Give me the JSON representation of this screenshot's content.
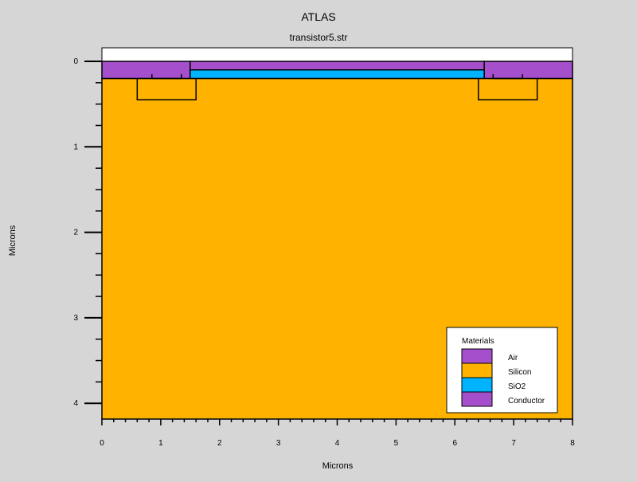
{
  "chart_data": {
    "type": "structure",
    "title": "ATLAS",
    "subtitle": "transistor5.str",
    "xlabel": "Microns",
    "ylabel": "Microns",
    "xlim": [
      0,
      8
    ],
    "ylim": [
      0,
      4.2
    ],
    "y_inverted": true,
    "x_ticks": [
      0,
      1,
      2,
      3,
      4,
      5,
      6,
      7,
      8
    ],
    "y_ticks": [
      0,
      1,
      2,
      3,
      4
    ],
    "legend": {
      "title": "Materials",
      "position": "bottom-right",
      "items": [
        {
          "name": "Air",
          "color": "#a64fcc"
        },
        {
          "name": "Silicon",
          "color": "#ffb300"
        },
        {
          "name": "SiO2",
          "color": "#00b3ff"
        },
        {
          "name": "Conductor",
          "color": "#a64fcc"
        }
      ]
    },
    "regions": [
      {
        "name": "air",
        "material": "Air",
        "x": [
          0,
          8
        ],
        "y": [
          -0.15,
          0
        ]
      },
      {
        "name": "silicon-substrate",
        "material": "Silicon",
        "x": [
          0,
          8
        ],
        "y": [
          0.2,
          4.2
        ]
      },
      {
        "name": "source-contact",
        "material": "Conductor",
        "x": [
          0,
          1.5
        ],
        "y": [
          0,
          0.2
        ]
      },
      {
        "name": "gate-contact",
        "material": "Conductor",
        "x": [
          1.5,
          6.5
        ],
        "y": [
          0,
          0.1
        ]
      },
      {
        "name": "gate-oxide",
        "material": "SiO2",
        "x": [
          1.5,
          6.5
        ],
        "y": [
          0.1,
          0.2
        ]
      },
      {
        "name": "drain-contact",
        "material": "Conductor",
        "x": [
          6.5,
          8
        ],
        "y": [
          0,
          0.2
        ]
      }
    ],
    "outlines": [
      {
        "name": "source-junction",
        "x": [
          0.6,
          1.6
        ],
        "y": [
          0.2,
          0.45
        ]
      },
      {
        "name": "drain-junction",
        "x": [
          6.4,
          7.4
        ],
        "y": [
          0.2,
          0.45
        ]
      },
      {
        "name": "source-plug",
        "x": [
          0.85,
          1.35
        ],
        "y": [
          0.15,
          0.2
        ]
      },
      {
        "name": "drain-plug",
        "x": [
          6.65,
          7.15
        ],
        "y": [
          0.15,
          0.2
        ]
      }
    ]
  }
}
